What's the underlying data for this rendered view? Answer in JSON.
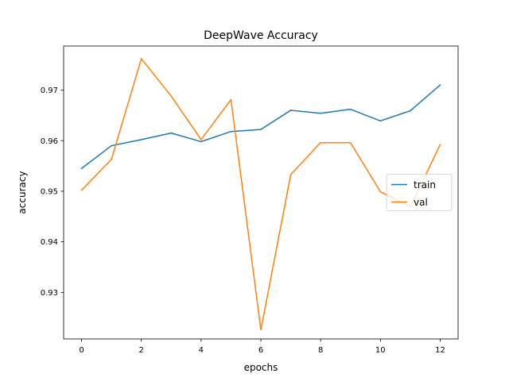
{
  "chart_data": {
    "type": "line",
    "title": "DeepWave Accuracy",
    "xlabel": "epochs",
    "ylabel": "accuracy",
    "xlim": [
      -0.6,
      12.6
    ],
    "ylim": [
      0.9208,
      0.9787
    ],
    "xticks": [
      0,
      2,
      4,
      6,
      8,
      10,
      12
    ],
    "xtick_labels": [
      "0",
      "2",
      "4",
      "6",
      "8",
      "10",
      "12"
    ],
    "yticks": [
      0.93,
      0.94,
      0.95,
      0.96,
      0.97
    ],
    "ytick_labels": [
      "0.93",
      "0.94",
      "0.95",
      "0.96",
      "0.97"
    ],
    "grid": false,
    "legend_position": "center-right",
    "x": [
      0,
      1,
      2,
      3,
      4,
      5,
      6,
      7,
      8,
      9,
      10,
      11,
      12
    ],
    "series": [
      {
        "name": "train",
        "color": "#1f77b4",
        "values": [
          0.9545,
          0.959,
          0.9602,
          0.9615,
          0.9598,
          0.9618,
          0.9622,
          0.966,
          0.9654,
          0.9662,
          0.9639,
          0.9659,
          0.971
        ]
      },
      {
        "name": "val",
        "color": "#ff7f0e",
        "values": [
          0.9502,
          0.9563,
          0.9762,
          0.9688,
          0.9602,
          0.9681,
          0.9226,
          0.9533,
          0.9596,
          0.9596,
          0.9499,
          0.9469,
          0.9592
        ]
      }
    ]
  }
}
